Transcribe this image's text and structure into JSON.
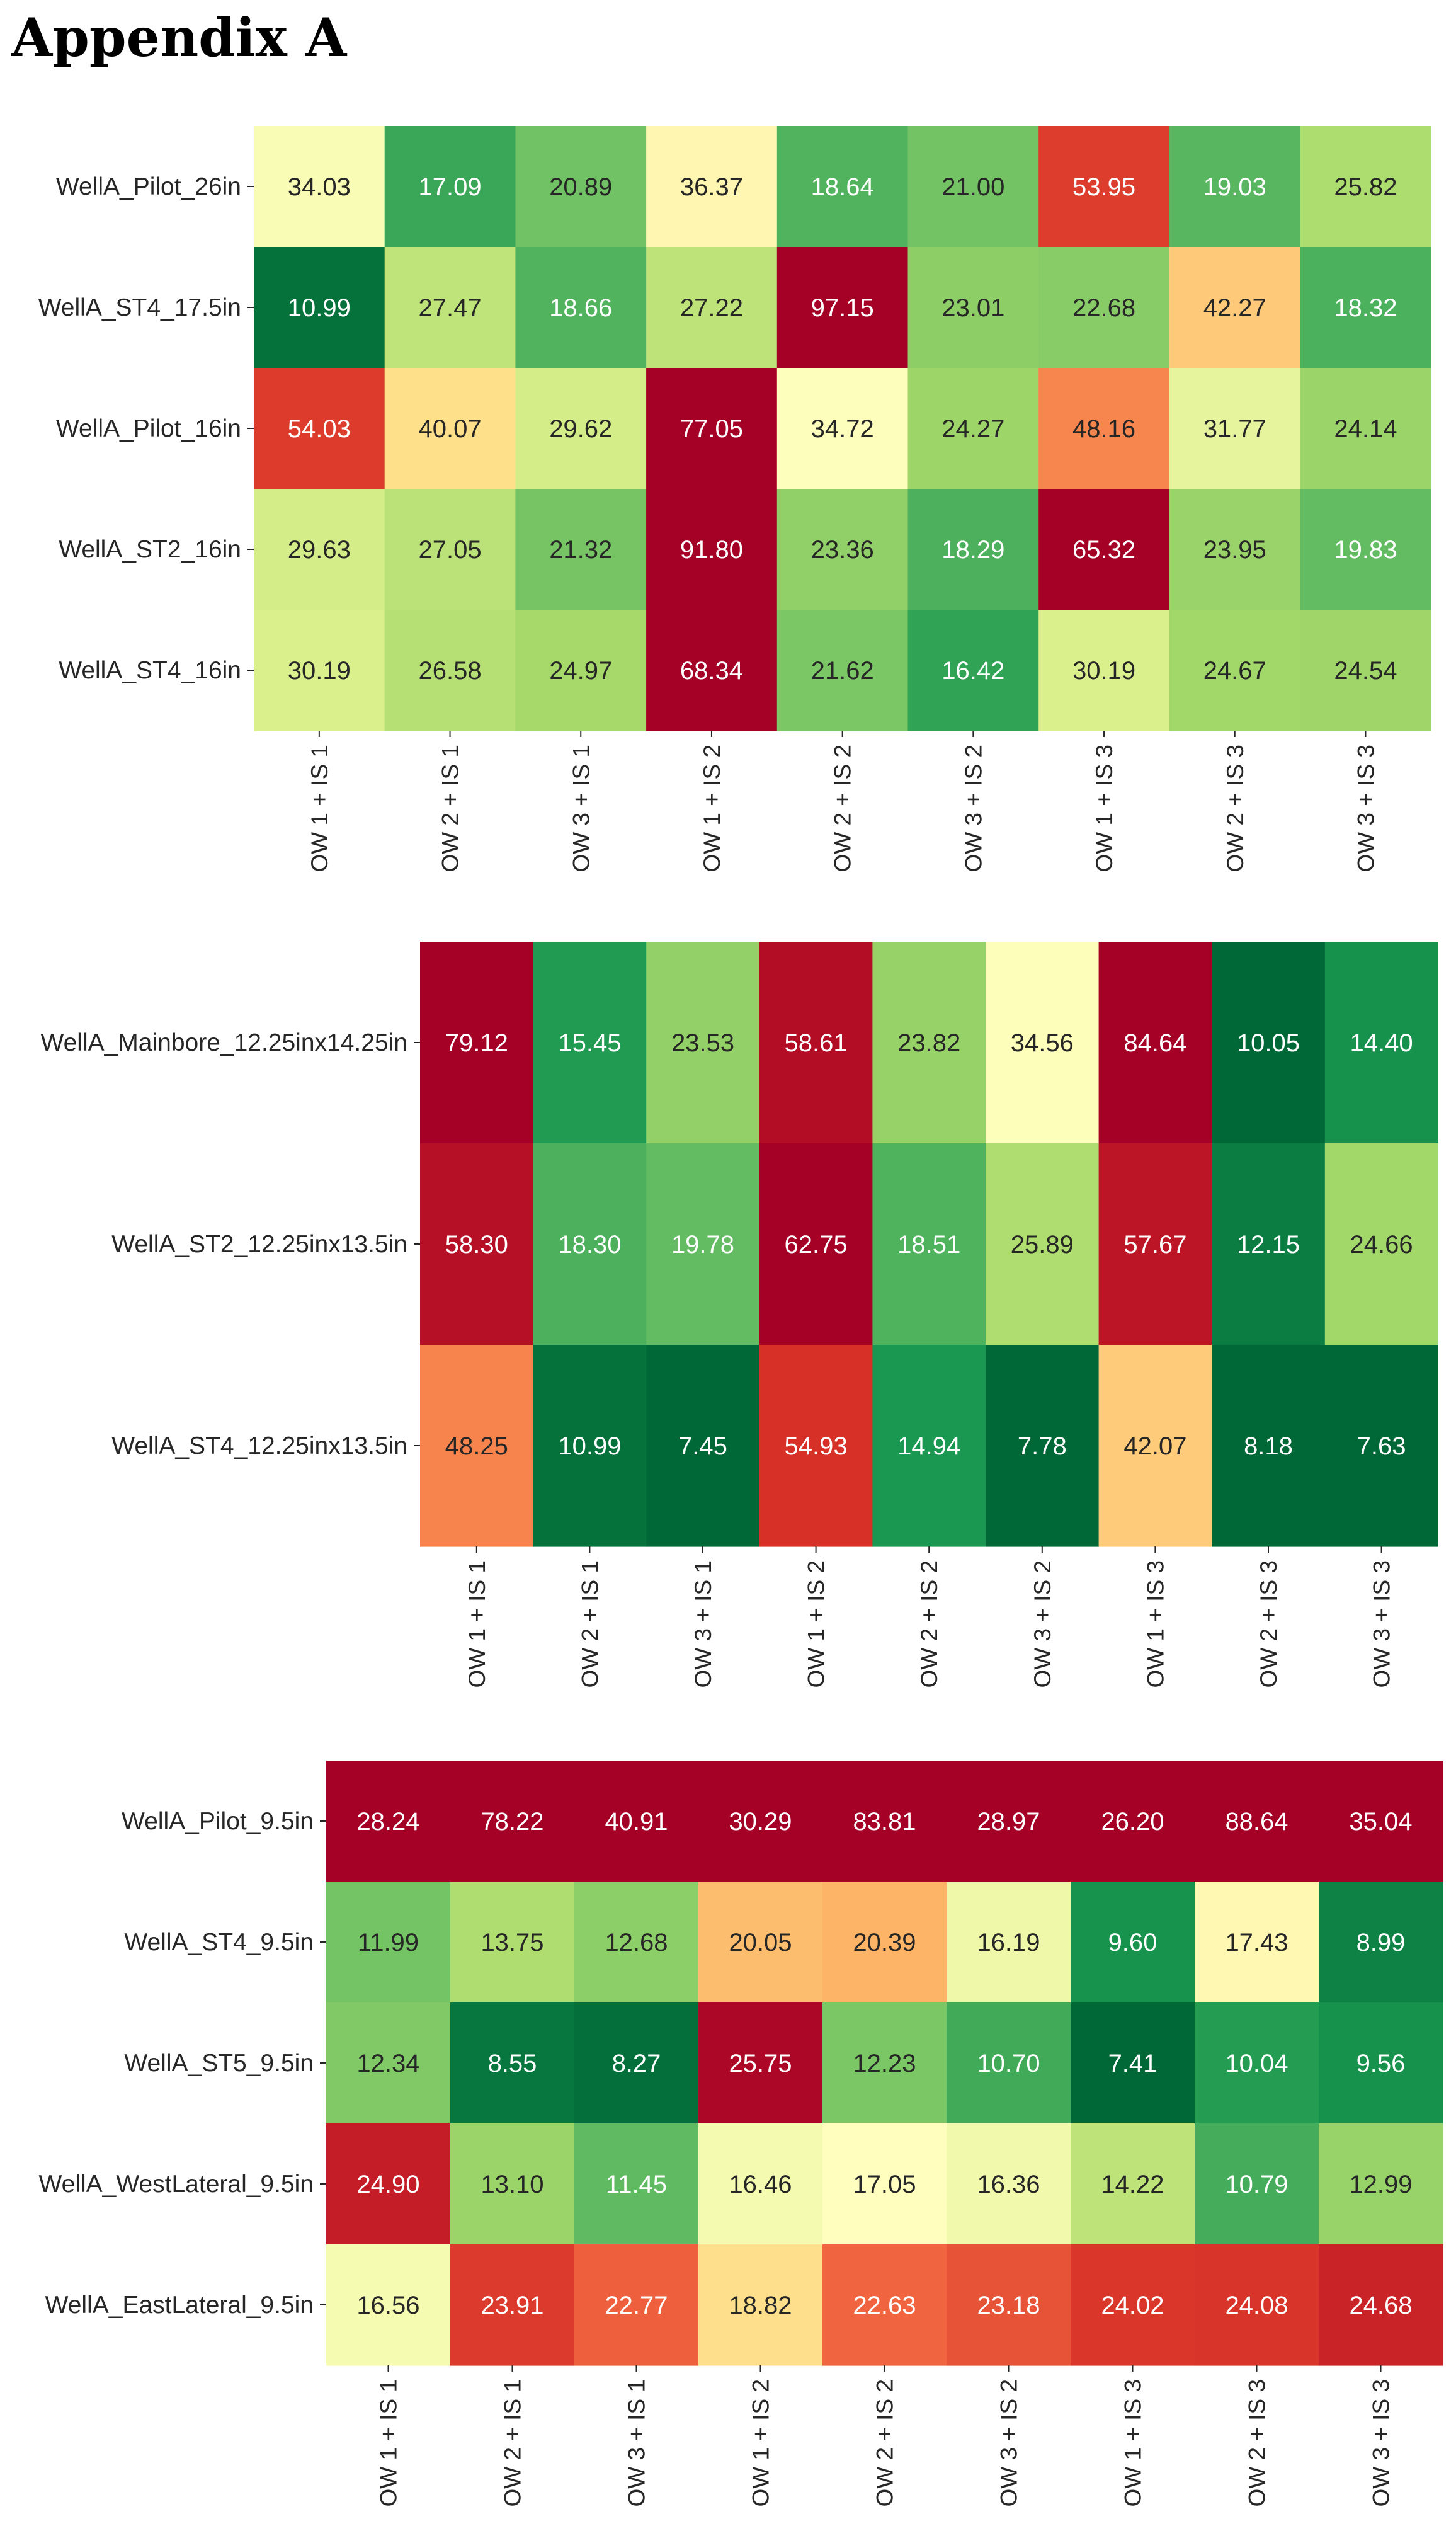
{
  "heading": "Appendix A",
  "chart_data": [
    {
      "type": "heatmap",
      "colormap": "RdYlGn_r",
      "color_range": [
        10,
        60
      ],
      "columns": [
        "OW 1 + IS 1",
        "OW 2 + IS 1",
        "OW 3 + IS 1",
        "OW 1 + IS 2",
        "OW 2 + IS 2",
        "OW 3 + IS 2",
        "OW 1 + IS 3",
        "OW 2 + IS 3",
        "OW 3 + IS 3"
      ],
      "rows": [
        "WellA_Pilot_26in",
        "WellA_ST4_17.5in",
        "WellA_Pilot_16in",
        "WellA_ST2_16in",
        "WellA_ST4_16in"
      ],
      "values": [
        [
          "34.03",
          "17.09",
          "20.89",
          "36.37",
          "18.64",
          "21.00",
          "53.95",
          "19.03",
          "25.82"
        ],
        [
          "10.99",
          "27.47",
          "18.66",
          "27.22",
          "97.15",
          "23.01",
          "22.68",
          "42.27",
          "18.32"
        ],
        [
          "54.03",
          "40.07",
          "29.62",
          "77.05",
          "34.72",
          "24.27",
          "48.16",
          "31.77",
          "24.14"
        ],
        [
          "29.63",
          "27.05",
          "21.32",
          "91.80",
          "23.36",
          "18.29",
          "65.32",
          "23.95",
          "19.83"
        ],
        [
          "30.19",
          "26.58",
          "24.97",
          "68.34",
          "21.62",
          "16.42",
          "30.19",
          "24.67",
          "24.54"
        ]
      ]
    },
    {
      "type": "heatmap",
      "colormap": "RdYlGn_r",
      "color_range": [
        10,
        60
      ],
      "columns": [
        "OW 1 + IS 1",
        "OW 2 + IS 1",
        "OW 3 + IS 1",
        "OW 1 + IS 2",
        "OW 2 + IS 2",
        "OW 3 + IS 2",
        "OW 1 + IS 3",
        "OW 2 + IS 3",
        "OW 3 + IS 3"
      ],
      "rows": [
        "WellA_Mainbore_12.25inx14.25in",
        "WellA_ST2_12.25inx13.5in",
        "WellA_ST4_12.25inx13.5in"
      ],
      "values": [
        [
          "79.12",
          "15.45",
          "23.53",
          "58.61",
          "23.82",
          "34.56",
          "84.64",
          "10.05",
          "14.40"
        ],
        [
          "58.30",
          "18.30",
          "19.78",
          "62.75",
          "18.51",
          "25.89",
          "57.67",
          "12.15",
          "24.66"
        ],
        [
          "48.25",
          "10.99",
          "7.45",
          "54.93",
          "14.94",
          "7.78",
          "42.07",
          "8.18",
          "7.63"
        ]
      ]
    },
    {
      "type": "heatmap",
      "colormap": "RdYlGn_r",
      "color_range": [
        8,
        26
      ],
      "columns": [
        "OW 1 + IS 1",
        "OW 2 + IS 1",
        "OW 3 + IS 1",
        "OW 1 + IS 2",
        "OW 2 + IS 2",
        "OW 3 + IS 2",
        "OW 1 + IS 3",
        "OW 2 + IS 3",
        "OW 3 + IS 3"
      ],
      "rows": [
        "WellA_Pilot_9.5in",
        "WellA_ST4_9.5in",
        "WellA_ST5_9.5in",
        "WellA_WestLateral_9.5in",
        "WellA_EastLateral_9.5in"
      ],
      "values": [
        [
          "28.24",
          "78.22",
          "40.91",
          "30.29",
          "83.81",
          "28.97",
          "26.20",
          "88.64",
          "35.04"
        ],
        [
          "11.99",
          "13.75",
          "12.68",
          "20.05",
          "20.39",
          "16.19",
          "9.60",
          "17.43",
          "8.99"
        ],
        [
          "12.34",
          "8.55",
          "8.27",
          "25.75",
          "12.23",
          "10.70",
          "7.41",
          "10.04",
          "9.56"
        ],
        [
          "24.90",
          "13.10",
          "11.45",
          "16.46",
          "17.05",
          "16.36",
          "14.22",
          "10.79",
          "12.99"
        ],
        [
          "16.56",
          "23.91",
          "22.77",
          "18.82",
          "22.63",
          "23.18",
          "24.02",
          "24.08",
          "24.68"
        ]
      ]
    }
  ]
}
